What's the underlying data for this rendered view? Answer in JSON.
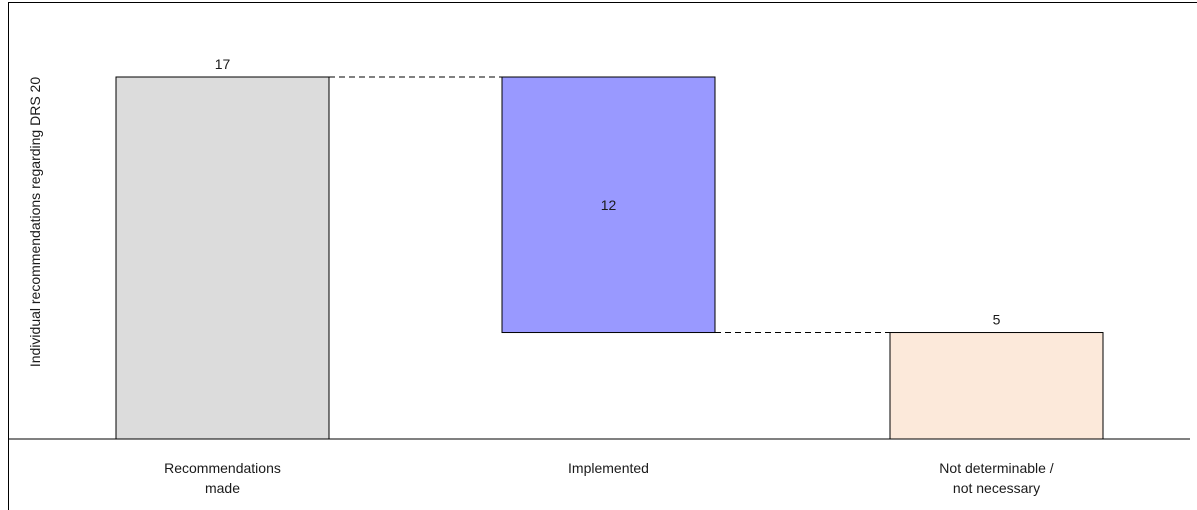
{
  "chart_data": {
    "type": "waterfall",
    "title": "",
    "ylabel": "Individual recommendations regarding DRS 20",
    "xlabel": "",
    "categories": [
      [
        "Recommendations",
        "made"
      ],
      [
        "Implemented"
      ],
      [
        "Not determinable /",
        "not necessary"
      ]
    ],
    "bars": [
      {
        "name": "Recommendations made",
        "start": 0,
        "end": 17,
        "label": "17",
        "color": "#dcdcdc",
        "label_position": "above"
      },
      {
        "name": "Implemented",
        "start": 5,
        "end": 17,
        "label": "12",
        "color": "#9999ff",
        "label_position": "inside"
      },
      {
        "name": "Not determinable / not necessary",
        "start": 0,
        "end": 5,
        "label": "5",
        "color": "#fce9da",
        "label_position": "above"
      }
    ],
    "ylim": [
      0,
      17
    ],
    "grid": false,
    "connectors": "dashed"
  }
}
